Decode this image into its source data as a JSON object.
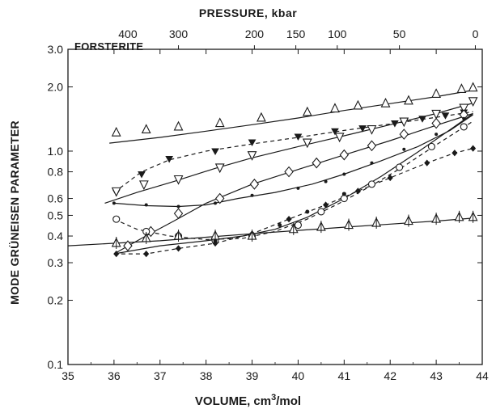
{
  "chart_data": {
    "type": "scatter",
    "panel_label": "FORSTERITE",
    "xlabel_prefix": "VOLUME, cm",
    "xlabel_sup": "3",
    "xlabel_suffix": "/mol",
    "ylabel": "MODE GRÜNEISEN PARAMETER",
    "x2label": "PRESSURE, kbar",
    "xlim": [
      35,
      44
    ],
    "ylim": [
      0.1,
      3.0
    ],
    "yscale": "log",
    "xticks": [
      35,
      36,
      37,
      38,
      39,
      40,
      41,
      42,
      43,
      44
    ],
    "yticks": [
      {
        "value": 0.1,
        "label": "0.1"
      },
      {
        "value": 0.2,
        "label": "0.2"
      },
      {
        "value": 0.3,
        "label": "0.3"
      },
      {
        "value": 0.4,
        "label": "0.4"
      },
      {
        "value": 0.5,
        "label": "0.5"
      },
      {
        "value": 0.6,
        "label": "0.6"
      },
      {
        "value": 0.8,
        "label": "0.8"
      },
      {
        "value": 1.0,
        "label": "1.0"
      },
      {
        "value": 2.0,
        "label": "2.0"
      },
      {
        "value": 3.0,
        "label": "3.0"
      }
    ],
    "pressure_ticks": [
      {
        "volume": 36.3,
        "label": "400"
      },
      {
        "volume": 37.4,
        "label": "300"
      },
      {
        "volume": 39.05,
        "label": "200"
      },
      {
        "volume": 39.95,
        "label": "150"
      },
      {
        "volume": 40.85,
        "label": "100"
      },
      {
        "volume": 42.2,
        "label": "50"
      },
      {
        "volume": 43.85,
        "label": "0"
      }
    ],
    "series": [
      {
        "marker": "triangle-up",
        "line": "solid",
        "x": [
          36.05,
          36.7,
          37.4,
          38.3,
          39.2,
          40.2,
          40.8,
          41.3,
          41.9,
          42.4,
          43.0,
          43.55,
          43.8
        ],
        "y": [
          1.22,
          1.26,
          1.3,
          1.35,
          1.43,
          1.52,
          1.58,
          1.63,
          1.67,
          1.72,
          1.85,
          1.95,
          1.98
        ],
        "fit_x": [
          35.9,
          37.0,
          38.0,
          39.0,
          40.0,
          41.0,
          42.0,
          43.0,
          43.8
        ],
        "fit_y": [
          1.09,
          1.16,
          1.24,
          1.33,
          1.43,
          1.55,
          1.67,
          1.8,
          1.93
        ]
      },
      {
        "marker": "triangle-down-filled",
        "line": "dashed",
        "x": [
          36.05,
          36.6,
          37.2,
          38.2,
          39.0,
          40.0,
          40.8,
          41.4,
          42.1,
          42.7,
          43.2,
          43.6
        ],
        "y": [
          0.64,
          0.78,
          0.92,
          1.0,
          1.1,
          1.17,
          1.24,
          1.28,
          1.35,
          1.42,
          1.47,
          1.52
        ],
        "fit_x": [
          36.0,
          36.6,
          37.2,
          38.0,
          39.0,
          40.0,
          41.0,
          42.0,
          43.0,
          43.8
        ],
        "fit_y": [
          0.64,
          0.8,
          0.91,
          1.0,
          1.08,
          1.16,
          1.25,
          1.34,
          1.44,
          1.53
        ]
      },
      {
        "marker": "triangle-down",
        "line": "solid",
        "x": [
          36.05,
          36.65,
          37.4,
          38.3,
          39.0,
          40.2,
          40.9,
          41.6,
          42.3,
          43.0,
          43.6,
          43.8
        ],
        "y": [
          0.65,
          0.7,
          0.74,
          0.84,
          0.96,
          1.1,
          1.17,
          1.27,
          1.38,
          1.5,
          1.6,
          1.72
        ],
        "fit_x": [
          35.8,
          36.5,
          37.3,
          38.2,
          39.0,
          40.0,
          41.0,
          42.0,
          43.0,
          43.8
        ],
        "fit_y": [
          0.57,
          0.64,
          0.72,
          0.83,
          0.93,
          1.05,
          1.18,
          1.33,
          1.5,
          1.68
        ]
      },
      {
        "marker": "diamond",
        "line": "solid",
        "x": [
          36.3,
          36.8,
          37.4,
          38.3,
          39.05,
          39.8,
          40.4,
          41.0,
          41.6,
          42.3,
          43.0,
          43.6
        ],
        "y": [
          0.36,
          0.42,
          0.51,
          0.6,
          0.7,
          0.8,
          0.88,
          0.96,
          1.06,
          1.2,
          1.35,
          1.48
        ],
        "fit_x": [
          36.0,
          36.6,
          37.3,
          38.0,
          39.0,
          40.0,
          41.0,
          42.0,
          43.0,
          43.8
        ],
        "fit_y": [
          0.33,
          0.39,
          0.47,
          0.57,
          0.7,
          0.82,
          0.96,
          1.12,
          1.32,
          1.5
        ]
      },
      {
        "marker": "small-dot",
        "line": "solid",
        "x": [
          36.0,
          36.7,
          37.4,
          38.2,
          39.0,
          40.0,
          40.6,
          41.0,
          41.6,
          42.3,
          43.0,
          43.6
        ],
        "y": [
          0.57,
          0.56,
          0.55,
          0.57,
          0.62,
          0.67,
          0.72,
          0.78,
          0.88,
          1.02,
          1.2,
          1.42
        ],
        "fit_x": [
          36.0,
          36.7,
          37.4,
          38.0,
          38.7,
          39.5,
          40.3,
          41.0,
          41.8,
          42.6,
          43.3,
          43.8
        ],
        "fit_y": [
          0.57,
          0.555,
          0.55,
          0.56,
          0.6,
          0.64,
          0.7,
          0.78,
          0.9,
          1.05,
          1.25,
          1.48
        ]
      },
      {
        "marker": "circle",
        "line": "dashed",
        "x": [
          36.05,
          36.7,
          37.4,
          38.2,
          39.0,
          40.0,
          40.5,
          41.0,
          41.6,
          42.2,
          42.9,
          43.6
        ],
        "y": [
          0.48,
          0.42,
          0.4,
          0.38,
          0.4,
          0.45,
          0.52,
          0.6,
          0.7,
          0.84,
          1.05,
          1.3
        ],
        "fit_x": [
          36.0,
          36.5,
          37.2,
          38.0,
          38.8,
          39.5,
          40.2,
          40.9,
          41.6,
          42.3,
          43.0,
          43.8
        ],
        "fit_y": [
          0.48,
          0.43,
          0.4,
          0.385,
          0.39,
          0.42,
          0.48,
          0.57,
          0.69,
          0.85,
          1.07,
          1.38
        ]
      },
      {
        "marker": "circle-small",
        "line": "solid",
        "x": [
          38.2,
          39.0,
          39.6,
          40.2,
          41.0
        ],
        "y": [
          0.38,
          0.41,
          0.45,
          0.52,
          0.63
        ],
        "fit_x": [
          36.0,
          37.0,
          38.0,
          38.8,
          39.5,
          40.2,
          41.0,
          41.8,
          42.6,
          43.3,
          43.8
        ],
        "fit_y": [
          0.33,
          0.36,
          0.38,
          0.4,
          0.43,
          0.49,
          0.6,
          0.76,
          0.99,
          1.26,
          1.5
        ]
      },
      {
        "marker": "filled-diamond",
        "line": "dashed",
        "x": [
          36.05,
          36.7,
          37.4,
          38.2,
          39.0,
          39.8,
          40.6,
          41.3,
          42.0,
          42.8,
          43.4,
          43.8
        ],
        "y": [
          0.33,
          0.33,
          0.35,
          0.37,
          0.41,
          0.48,
          0.56,
          0.65,
          0.75,
          0.88,
          0.98,
          1.03
        ],
        "fit_x": [
          36.0,
          36.7,
          37.4,
          38.2,
          39.0,
          39.8,
          40.6,
          41.3,
          42.0,
          42.8,
          43.4,
          43.8
        ],
        "fit_y": [
          0.33,
          0.33,
          0.35,
          0.37,
          0.41,
          0.48,
          0.56,
          0.65,
          0.75,
          0.88,
          0.98,
          1.03
        ]
      },
      {
        "marker": "triangle-up-bar",
        "line": "solid",
        "x": [
          36.05,
          36.7,
          37.4,
          38.2,
          39.0,
          39.9,
          40.5,
          41.1,
          41.7,
          42.4,
          43.0,
          43.5,
          43.8
        ],
        "y": [
          0.37,
          0.39,
          0.4,
          0.4,
          0.4,
          0.43,
          0.44,
          0.45,
          0.46,
          0.47,
          0.48,
          0.49,
          0.49
        ],
        "fit_x": [
          35.0,
          36.0,
          37.0,
          38.0,
          39.0,
          40.0,
          41.0,
          42.0,
          43.0,
          43.8
        ],
        "fit_y": [
          0.36,
          0.37,
          0.38,
          0.395,
          0.41,
          0.425,
          0.44,
          0.455,
          0.47,
          0.485
        ]
      }
    ]
  }
}
